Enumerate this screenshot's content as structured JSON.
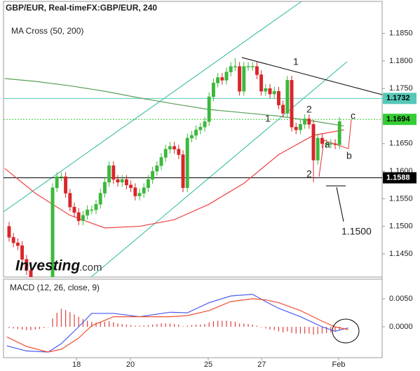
{
  "chart_data": [
    {
      "type": "candlestick",
      "title": "GBP/EUR, Real-timeFX:GBP/EUR, 240",
      "indicator": "MA Cross (50, 200)",
      "xlim": [
        -1.29,
        85.8
      ],
      "ylim": [
        1.1408,
        1.1908
      ],
      "yticks": [
        {
          "value": 1.185,
          "label": "1.1850"
        },
        {
          "value": 1.18,
          "label": "1.1800"
        },
        {
          "value": 1.175,
          "label": "1.1750"
        },
        {
          "value": 1.165,
          "label": "1.1650"
        },
        {
          "value": 1.16,
          "label": "1.1600"
        },
        {
          "value": 1.155,
          "label": "1.1550"
        },
        {
          "value": 1.15,
          "label": "1.1500"
        },
        {
          "value": 1.145,
          "label": "1.1450"
        }
      ],
      "up_color": "#3cb83c",
      "down_color": "#d9262b",
      "open": [
        1.15,
        1.148,
        1.147,
        1.1465,
        1.144,
        1.142,
        1.14,
        1.1395,
        1.139,
        1.1385,
        1.139,
        1.157,
        1.159,
        1.159,
        1.156,
        1.1535,
        1.1525,
        1.151,
        1.152,
        1.153,
        1.153,
        1.154,
        1.156,
        1.158,
        1.161,
        1.1585,
        1.158,
        1.1585,
        1.1575,
        1.157,
        1.1555,
        1.156,
        1.157,
        1.1585,
        1.16,
        1.161,
        1.1625,
        1.164,
        1.1645,
        1.164,
        1.163,
        1.157,
        1.166,
        1.1665,
        1.1675,
        1.168,
        1.169,
        1.1735,
        1.176,
        1.177,
        1.1765,
        1.178,
        1.179,
        1.179,
        1.1745,
        1.179,
        1.179,
        1.179,
        1.1775,
        1.1745,
        1.175,
        1.174,
        1.1745,
        1.172,
        1.1705,
        1.1765,
        1.168,
        1.1675,
        1.1685,
        1.1695,
        1.1685,
        1.162,
        1.166,
        1.165,
        1.165,
        1.165,
        1.1648
      ],
      "high": [
        1.1508,
        1.1488,
        1.1478,
        1.1473,
        1.1448,
        1.1428,
        1.1408,
        1.1403,
        1.1398,
        1.1398,
        1.1578,
        1.1598,
        1.1598,
        1.1598,
        1.1568,
        1.1543,
        1.1533,
        1.1528,
        1.1538,
        1.1538,
        1.1548,
        1.1568,
        1.1588,
        1.1618,
        1.1618,
        1.1593,
        1.1593,
        1.1593,
        1.1583,
        1.1578,
        1.1568,
        1.1578,
        1.1593,
        1.1608,
        1.1618,
        1.1633,
        1.1648,
        1.1653,
        1.1653,
        1.1648,
        1.1638,
        1.1668,
        1.1673,
        1.1683,
        1.1688,
        1.1698,
        1.1743,
        1.1768,
        1.1778,
        1.1778,
        1.1788,
        1.1798,
        1.1805,
        1.1798,
        1.1798,
        1.1798,
        1.1798,
        1.1798,
        1.1783,
        1.1758,
        1.1758,
        1.1753,
        1.1753,
        1.1728,
        1.1773,
        1.1773,
        1.1688,
        1.1693,
        1.1703,
        1.1703,
        1.1693,
        1.1668,
        1.1668,
        1.1658,
        1.1658,
        1.1658,
        1.1698
      ],
      "low": [
        1.1472,
        1.1462,
        1.1457,
        1.1432,
        1.1412,
        1.1392,
        1.1387,
        1.1382,
        1.1377,
        1.1377,
        1.1382,
        1.1562,
        1.1582,
        1.1552,
        1.1527,
        1.1517,
        1.1502,
        1.1502,
        1.1512,
        1.1522,
        1.1522,
        1.1532,
        1.1552,
        1.1572,
        1.1577,
        1.1572,
        1.1572,
        1.1567,
        1.1562,
        1.1547,
        1.1547,
        1.1552,
        1.1562,
        1.1577,
        1.1592,
        1.1602,
        1.1617,
        1.1632,
        1.1632,
        1.1622,
        1.1562,
        1.1562,
        1.1652,
        1.1657,
        1.1667,
        1.1672,
        1.1682,
        1.1727,
        1.1752,
        1.1757,
        1.1757,
        1.1772,
        1.1782,
        1.1737,
        1.1737,
        1.1782,
        1.1782,
        1.1767,
        1.1737,
        1.1737,
        1.1732,
        1.1732,
        1.1712,
        1.1697,
        1.1697,
        1.1672,
        1.1667,
        1.1667,
        1.1677,
        1.1677,
        1.158,
        1.1612,
        1.1642,
        1.1642,
        1.1642,
        1.164,
        1.164
      ],
      "close": [
        1.148,
        1.147,
        1.1465,
        1.144,
        1.142,
        1.14,
        1.1395,
        1.139,
        1.1385,
        1.139,
        1.157,
        1.159,
        1.159,
        1.156,
        1.1535,
        1.1525,
        1.151,
        1.152,
        1.153,
        1.153,
        1.154,
        1.156,
        1.158,
        1.161,
        1.1585,
        1.158,
        1.1585,
        1.1575,
        1.157,
        1.1555,
        1.156,
        1.157,
        1.1585,
        1.16,
        1.161,
        1.1625,
        1.164,
        1.1645,
        1.164,
        1.163,
        1.157,
        1.166,
        1.1665,
        1.1675,
        1.168,
        1.169,
        1.1735,
        1.176,
        1.177,
        1.1765,
        1.178,
        1.179,
        1.179,
        1.1745,
        1.179,
        1.179,
        1.179,
        1.1775,
        1.1745,
        1.175,
        1.174,
        1.1745,
        1.172,
        1.1705,
        1.1765,
        1.168,
        1.1675,
        1.1685,
        1.1695,
        1.1685,
        1.162,
        1.166,
        1.165,
        1.165,
        1.165,
        1.1648,
        1.169
      ],
      "series": [
        {
          "color": "#f04040",
          "x": [
            -1,
            6,
            14,
            22,
            30,
            38,
            46,
            54,
            62,
            70,
            77
          ],
          "values": [
            1.1605,
            1.156,
            1.152,
            1.1497,
            1.15,
            1.1512,
            1.154,
            1.1578,
            1.163,
            1.1665,
            1.1675
          ]
        },
        {
          "color": "#5aa05a",
          "x": [
            -1,
            6,
            14,
            22,
            30,
            38,
            46,
            54,
            62,
            70,
            77
          ],
          "values": [
            1.1768,
            1.1763,
            1.1755,
            1.1745,
            1.1733,
            1.1722,
            1.1712,
            1.1706,
            1.17,
            1.1691,
            1.1682
          ]
        }
      ],
      "price_lines": [
        {
          "value": 1.1732,
          "color": "#55c8b8",
          "text_color": "#000000",
          "dash": "none"
        },
        {
          "value": 1.1694,
          "color": "#33cc33",
          "text_color": "#000000",
          "dash": "2,2"
        },
        {
          "value": 1.1588,
          "color": "#000000",
          "text_color": "#ffffff",
          "dash": "none"
        }
      ],
      "annotations": [
        "1",
        "1",
        "2",
        "2",
        "a",
        "b",
        "c",
        "1.1500"
      ],
      "logo": [
        "Investing",
        ".com"
      ]
    },
    {
      "type": "macd",
      "title": "MACD (12, 26, close, 9)",
      "xlim": [
        -1.29,
        85.8
      ],
      "ylim": [
        -0.0055,
        0.0085
      ],
      "yticks": [
        {
          "value": 0.005,
          "label": "0.0050"
        },
        {
          "value": 0,
          "label": "0.0000"
        }
      ],
      "xticks": [
        {
          "value": 15.5,
          "label": "18"
        },
        {
          "value": 27.9,
          "label": "20"
        },
        {
          "value": 45.8,
          "label": "25"
        },
        {
          "value": 58.1,
          "label": "27"
        },
        {
          "value": 75.8,
          "label": "Feb"
        }
      ],
      "histogram": {
        "color": "#e04040",
        "values": [
          -0.0002,
          -0.0003,
          -0.0004,
          -0.0005,
          -0.0006,
          -0.0006,
          -0.0005,
          -0.0004,
          -0.0002,
          0.0,
          0.0015,
          0.0025,
          0.0032,
          0.003,
          0.0026,
          0.0022,
          0.0018,
          0.0014,
          0.0011,
          0.0009,
          0.0008,
          0.0008,
          0.0009,
          0.001,
          0.0008,
          0.0006,
          0.0005,
          0.0004,
          0.0003,
          0.0002,
          0.0002,
          0.0002,
          0.0003,
          0.0004,
          0.0005,
          0.0006,
          0.0006,
          0.0006,
          0.0005,
          0.0004,
          0.0001,
          0.0002,
          0.0003,
          0.0004,
          0.0004,
          0.0005,
          0.0008,
          0.001,
          0.0011,
          0.0011,
          0.0011,
          0.001,
          0.0009,
          0.0006,
          0.0006,
          0.0005,
          0.0004,
          0.0002,
          -0.0001,
          -0.0003,
          -0.0005,
          -0.0006,
          -0.0008,
          -0.001,
          -0.0008,
          -0.0011,
          -0.0012,
          -0.0012,
          -0.0012,
          -0.0012,
          -0.0014,
          -0.0013,
          -0.0012,
          -0.0011,
          -0.001,
          -0.0009,
          -0.0006
        ]
      },
      "series": [
        {
          "color": "#4a5cf0",
          "x": [
            -0.5,
            4,
            9,
            12,
            16,
            19,
            24,
            30,
            37,
            41,
            46,
            51,
            56,
            59,
            62,
            67,
            72,
            75,
            78
          ],
          "values": [
            -0.0034,
            -0.0043,
            -0.0045,
            -0.003,
            0.0,
            0.0024,
            0.0024,
            0.0018,
            0.0026,
            0.0025,
            0.0043,
            0.0055,
            0.0058,
            0.0045,
            0.0033,
            0.0018,
            0.0,
            -0.0008,
            -0.0002
          ]
        },
        {
          "color": "#f05030",
          "x": [
            -0.5,
            4,
            9,
            12,
            16,
            19,
            24,
            30,
            37,
            41,
            46,
            51,
            56,
            59,
            62,
            67,
            72,
            75,
            78
          ],
          "values": [
            -0.0018,
            -0.0035,
            -0.0045,
            -0.004,
            -0.002,
            0.0002,
            0.0018,
            0.0018,
            0.0018,
            0.002,
            0.0029,
            0.0045,
            0.005,
            0.0048,
            0.0043,
            0.0029,
            0.001,
            0.0,
            -0.0005
          ]
        }
      ]
    }
  ]
}
